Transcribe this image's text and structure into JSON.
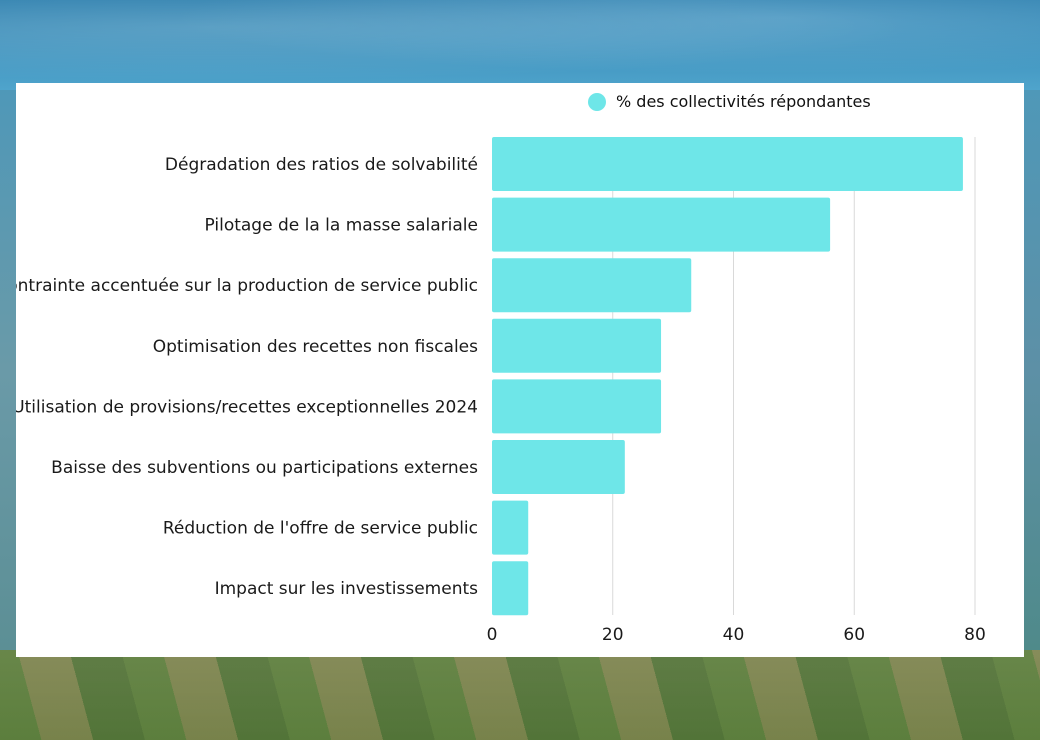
{
  "chart_data": {
    "type": "bar",
    "orientation": "horizontal",
    "categories": [
      "Dégradation des ratios de solvabilité",
      "Pilotage de la la masse salariale",
      "Contrainte accentuée sur la production de service public",
      "Optimisation des recettes non fiscales",
      "Utilisation de provisions/recettes exceptionnelles 2024",
      "Baisse des subventions ou participations externes",
      "Réduction de l'offre de service public",
      "Impact sur les investissements"
    ],
    "series": [
      {
        "name": "% des collectivités répondantes",
        "color": "#6ee6e8",
        "values": [
          78,
          56,
          33,
          28,
          28,
          22,
          6,
          6
        ]
      }
    ],
    "xlim": [
      0,
      80
    ],
    "xticks": [
      0,
      20,
      40,
      60,
      80
    ],
    "grid": true,
    "legend": "top"
  }
}
